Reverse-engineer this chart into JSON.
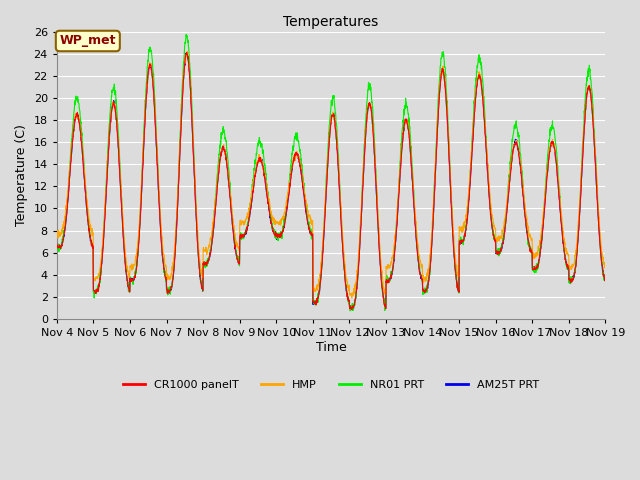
{
  "title": "Temperatures",
  "ylabel": "Temperature (C)",
  "xlabel": "Time",
  "ylim": [
    0,
    26
  ],
  "xtick_labels": [
    "Nov 4",
    "Nov 5",
    "Nov 6",
    "Nov 7",
    "Nov 8",
    "Nov 9",
    "Nov 10",
    "Nov 11",
    "Nov 12",
    "Nov 13",
    "Nov 14",
    "Nov 15",
    "Nov 16",
    "Nov 17",
    "Nov 18",
    "Nov 19"
  ],
  "annotation_text": "WP_met",
  "annotation_color": "#8B0000",
  "annotation_bg": "#FFFFCC",
  "annotation_border": "#8B6000",
  "line_colors": {
    "CR1000 panelT": "#FF0000",
    "HMP": "#FFA500",
    "NR01 PRT": "#00EE00",
    "AM25T PRT": "#0000EE"
  },
  "legend_labels": [
    "CR1000 panelT",
    "HMP",
    "NR01 PRT",
    "AM25T PRT"
  ],
  "background_color": "#DCDCDC",
  "plot_bg_color": "#DCDCDC",
  "grid_color": "#FFFFFF",
  "num_days": 15,
  "points_per_day": 144,
  "day_maxes": [
    18.5,
    19.5,
    23.0,
    24.0,
    15.5,
    14.5,
    15.0,
    18.5,
    19.5,
    18.0,
    22.5,
    22.0,
    16.0,
    16.0,
    21.0
  ],
  "day_mins": [
    6.5,
    2.5,
    3.5,
    2.5,
    5.0,
    7.5,
    7.5,
    1.5,
    1.0,
    3.5,
    2.5,
    7.0,
    6.0,
    4.5,
    3.5
  ],
  "peak_hour": 0.55,
  "sharpness": 3.0
}
